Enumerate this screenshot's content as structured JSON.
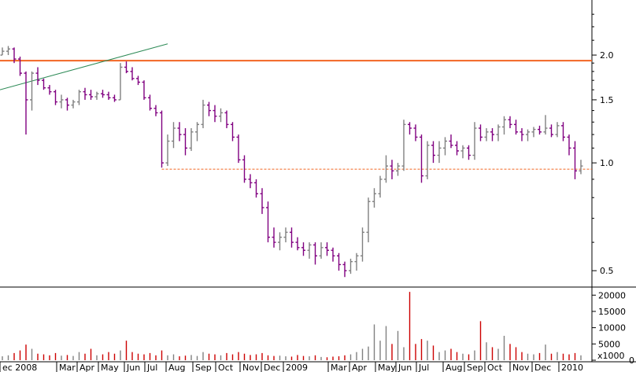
{
  "chart_data": {
    "type": "ohlc",
    "price_axis": {
      "scale": "log",
      "ticks": [
        "2.0",
        "1.5",
        "1.0",
        "0.5"
      ],
      "tick_values": [
        2.0,
        1.5,
        1.0,
        0.5
      ],
      "range": [
        0.45,
        2.85
      ]
    },
    "volume_axis": {
      "unit": "x1000",
      "ticks": [
        "20000",
        "15000",
        "10000",
        "5000",
        "0"
      ],
      "tick_values": [
        20000,
        15000,
        10000,
        5000,
        0
      ],
      "range": [
        0,
        22000
      ]
    },
    "x_labels": [
      "ec 2008",
      "Mar",
      "Apr",
      "May",
      "Jun",
      "Jul",
      "Aug",
      "Sep",
      "Oct",
      "Nov",
      "Dec",
      "2009",
      "Mar",
      "Apr",
      "May",
      "Jun",
      "Jul",
      "Aug",
      "Sep",
      "Oct",
      "Nov",
      "Dec",
      "2010"
    ],
    "resistance_line": {
      "value": 1.93,
      "color": "#f26522"
    },
    "support_line": {
      "value": 0.96,
      "color": "#f26522",
      "style": "dashed"
    },
    "trend_line": {
      "start": [
        0,
        1.6
      ],
      "end": [
        28,
        2.15
      ],
      "color": "#2e8b57"
    },
    "colors": {
      "up": "#808080",
      "down": "#800080",
      "volume_up": "#808080",
      "volume_down": "#cc0000"
    },
    "bars": [
      [
        2.0,
        2.1,
        2.0,
        2.05,
        1200
      ],
      [
        2.05,
        2.12,
        2.0,
        2.08,
        1500
      ],
      [
        2.08,
        2.1,
        1.9,
        1.95,
        2200
      ],
      [
        1.95,
        1.98,
        1.75,
        1.78,
        3000
      ],
      [
        1.78,
        1.8,
        1.2,
        1.5,
        4800
      ],
      [
        1.5,
        1.8,
        1.4,
        1.78,
        3500
      ],
      [
        1.78,
        1.85,
        1.65,
        1.7,
        2000
      ],
      [
        1.7,
        1.72,
        1.6,
        1.62,
        1800
      ],
      [
        1.62,
        1.65,
        1.55,
        1.58,
        1500
      ],
      [
        1.58,
        1.6,
        1.45,
        1.48,
        2200
      ],
      [
        1.48,
        1.55,
        1.42,
        1.5,
        1400
      ],
      [
        1.5,
        1.52,
        1.4,
        1.45,
        1600
      ],
      [
        1.45,
        1.5,
        1.42,
        1.48,
        1300
      ],
      [
        1.48,
        1.6,
        1.45,
        1.58,
        2500
      ],
      [
        1.58,
        1.62,
        1.5,
        1.55,
        2000
      ],
      [
        1.55,
        1.6,
        1.5,
        1.53,
        3500
      ],
      [
        1.53,
        1.58,
        1.5,
        1.56,
        1500
      ],
      [
        1.56,
        1.6,
        1.52,
        1.55,
        1800
      ],
      [
        1.55,
        1.58,
        1.5,
        1.52,
        2500
      ],
      [
        1.52,
        1.55,
        1.48,
        1.5,
        2000
      ],
      [
        1.5,
        1.9,
        1.5,
        1.85,
        3000
      ],
      [
        1.85,
        1.92,
        1.78,
        1.8,
        6000
      ],
      [
        1.8,
        1.85,
        1.7,
        1.72,
        2500
      ],
      [
        1.72,
        1.75,
        1.65,
        1.68,
        2000
      ],
      [
        1.68,
        1.7,
        1.5,
        1.52,
        1800
      ],
      [
        1.52,
        1.55,
        1.4,
        1.42,
        2200
      ],
      [
        1.42,
        1.45,
        1.35,
        1.38,
        1500
      ],
      [
        1.38,
        1.4,
        0.97,
        1.0,
        3000
      ],
      [
        1.0,
        1.2,
        0.98,
        1.15,
        1500
      ],
      [
        1.15,
        1.3,
        1.1,
        1.25,
        1800
      ],
      [
        1.25,
        1.3,
        1.15,
        1.2,
        1200
      ],
      [
        1.2,
        1.25,
        1.05,
        1.1,
        1400
      ],
      [
        1.1,
        1.25,
        1.08,
        1.22,
        1600
      ],
      [
        1.22,
        1.3,
        1.15,
        1.28,
        1300
      ],
      [
        1.28,
        1.5,
        1.25,
        1.45,
        2500
      ],
      [
        1.45,
        1.48,
        1.35,
        1.4,
        2000
      ],
      [
        1.4,
        1.45,
        1.3,
        1.35,
        1800
      ],
      [
        1.35,
        1.42,
        1.3,
        1.38,
        1500
      ],
      [
        1.38,
        1.4,
        1.25,
        1.28,
        2200
      ],
      [
        1.28,
        1.3,
        1.15,
        1.18,
        1800
      ],
      [
        1.18,
        1.2,
        1.0,
        1.02,
        2500
      ],
      [
        1.02,
        1.05,
        0.88,
        0.9,
        2000
      ],
      [
        0.9,
        0.93,
        0.85,
        0.88,
        1600
      ],
      [
        0.88,
        0.9,
        0.8,
        0.82,
        1800
      ],
      [
        0.82,
        0.85,
        0.72,
        0.75,
        2200
      ],
      [
        0.75,
        0.78,
        0.6,
        0.62,
        1500
      ],
      [
        0.62,
        0.66,
        0.58,
        0.6,
        1300
      ],
      [
        0.6,
        0.64,
        0.57,
        0.62,
        1400
      ],
      [
        0.62,
        0.66,
        0.6,
        0.64,
        1200
      ],
      [
        0.64,
        0.66,
        0.58,
        0.6,
        1100
      ],
      [
        0.6,
        0.62,
        0.57,
        0.58,
        1600
      ],
      [
        0.58,
        0.6,
        0.55,
        0.57,
        1300
      ],
      [
        0.57,
        0.6,
        0.54,
        0.59,
        1200
      ],
      [
        0.59,
        0.6,
        0.52,
        0.55,
        1500
      ],
      [
        0.55,
        0.6,
        0.54,
        0.58,
        1000
      ],
      [
        0.58,
        0.6,
        0.55,
        0.57,
        900
      ],
      [
        0.57,
        0.58,
        0.53,
        0.55,
        1100
      ],
      [
        0.55,
        0.56,
        0.5,
        0.52,
        1200
      ],
      [
        0.52,
        0.53,
        0.48,
        0.5,
        1500
      ],
      [
        0.5,
        0.54,
        0.49,
        0.53,
        1800
      ],
      [
        0.53,
        0.56,
        0.5,
        0.55,
        2500
      ],
      [
        0.55,
        0.66,
        0.53,
        0.64,
        3500
      ],
      [
        0.64,
        0.8,
        0.6,
        0.78,
        4200
      ],
      [
        0.78,
        0.85,
        0.75,
        0.82,
        11000
      ],
      [
        0.82,
        0.92,
        0.8,
        0.9,
        6000
      ],
      [
        0.9,
        1.05,
        0.88,
        0.98,
        10500
      ],
      [
        0.98,
        1.02,
        0.9,
        0.95,
        5000
      ],
      [
        0.95,
        1.0,
        0.92,
        0.98,
        9000
      ],
      [
        0.98,
        1.32,
        0.95,
        1.28,
        4000
      ],
      [
        1.28,
        1.3,
        1.2,
        1.25,
        21000
      ],
      [
        1.25,
        1.28,
        1.15,
        1.18,
        5000
      ],
      [
        1.18,
        1.2,
        0.88,
        0.92,
        6500
      ],
      [
        0.92,
        1.15,
        0.9,
        1.12,
        6000
      ],
      [
        1.12,
        1.15,
        1.0,
        1.05,
        4500
      ],
      [
        1.05,
        1.15,
        1.0,
        1.1,
        2500
      ],
      [
        1.1,
        1.18,
        1.05,
        1.15,
        3000
      ],
      [
        1.15,
        1.2,
        1.1,
        1.12,
        3500
      ],
      [
        1.12,
        1.15,
        1.05,
        1.08,
        2500
      ],
      [
        1.08,
        1.12,
        1.03,
        1.1,
        2000
      ],
      [
        1.1,
        1.12,
        1.02,
        1.05,
        1800
      ],
      [
        1.05,
        1.3,
        1.02,
        1.25,
        3000
      ],
      [
        1.25,
        1.28,
        1.15,
        1.18,
        12000
      ],
      [
        1.18,
        1.25,
        1.15,
        1.22,
        5500
      ],
      [
        1.22,
        1.25,
        1.15,
        1.2,
        4000
      ],
      [
        1.2,
        1.28,
        1.15,
        1.26,
        3500
      ],
      [
        1.26,
        1.35,
        1.2,
        1.32,
        7500
      ],
      [
        1.32,
        1.35,
        1.25,
        1.28,
        5000
      ],
      [
        1.28,
        1.32,
        1.2,
        1.22,
        4000
      ],
      [
        1.22,
        1.25,
        1.15,
        1.2,
        2500
      ],
      [
        1.2,
        1.24,
        1.15,
        1.22,
        2000
      ],
      [
        1.22,
        1.26,
        1.18,
        1.24,
        1800
      ],
      [
        1.24,
        1.27,
        1.2,
        1.22,
        2200
      ],
      [
        1.22,
        1.36,
        1.2,
        1.25,
        4800
      ],
      [
        1.25,
        1.28,
        1.18,
        1.2,
        2000
      ],
      [
        1.2,
        1.3,
        1.18,
        1.27,
        2500
      ],
      [
        1.27,
        1.3,
        1.15,
        1.18,
        2000
      ],
      [
        1.18,
        1.2,
        1.05,
        1.1,
        1800
      ],
      [
        1.1,
        1.15,
        0.9,
        0.95,
        2200
      ],
      [
        0.95,
        1.02,
        0.93,
        0.98,
        1500
      ]
    ]
  }
}
